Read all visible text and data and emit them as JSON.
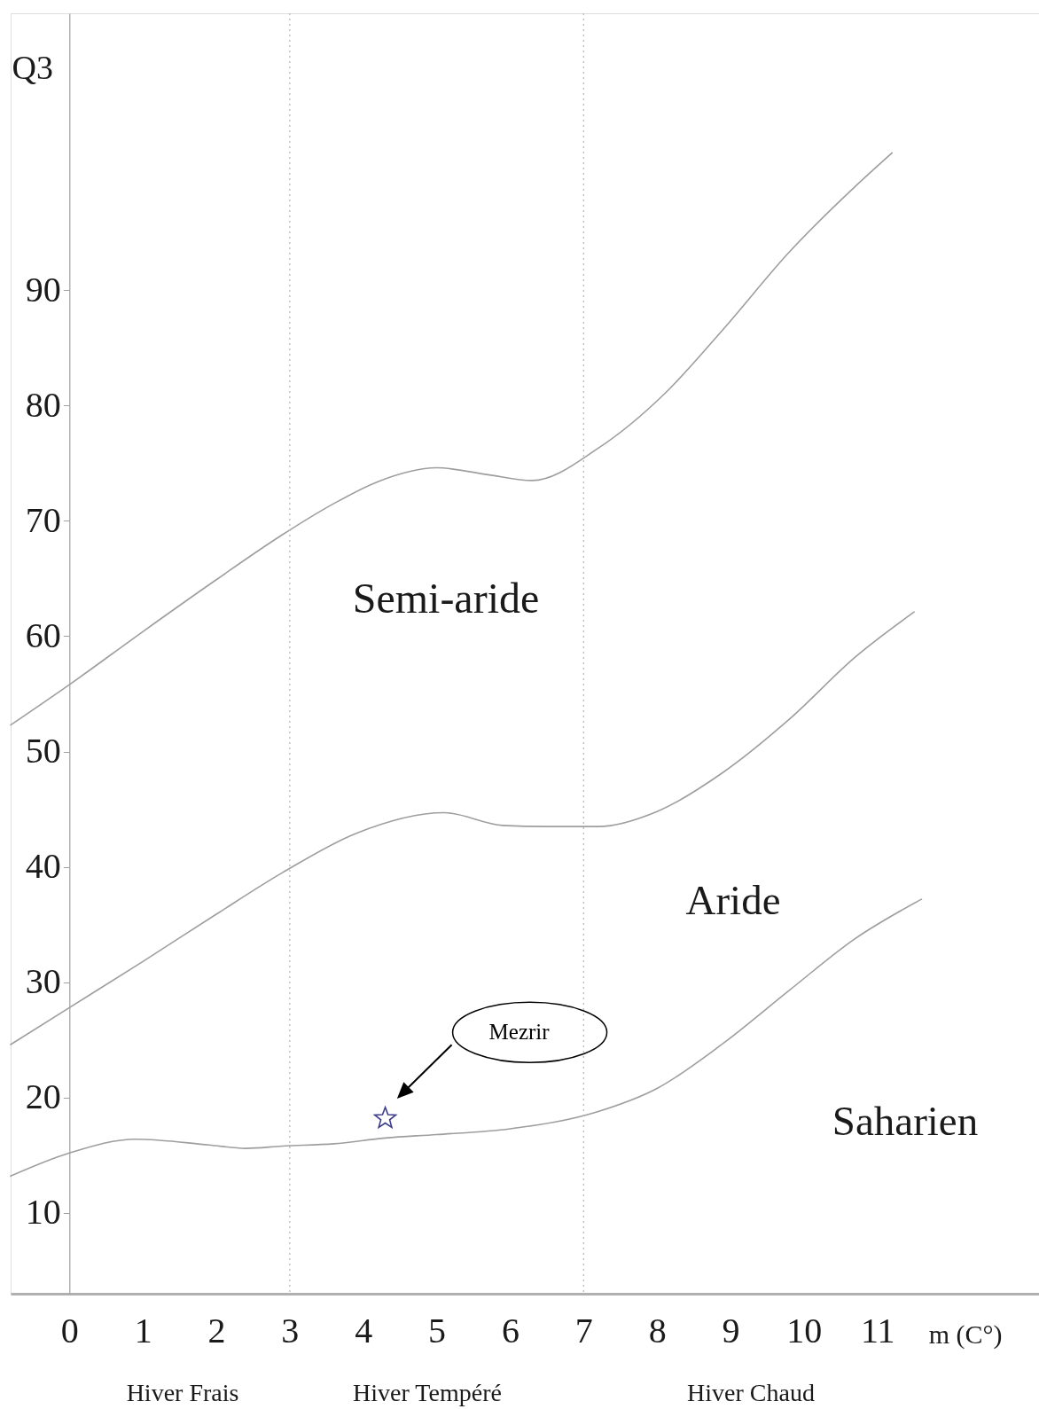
{
  "chart_data": {
    "type": "line",
    "xlabel": "m (C°)",
    "ylabel": "Q3",
    "xlim": [
      -0.8,
      13.2
    ],
    "ylim": [
      3,
      114
    ],
    "xticks": [
      0,
      1,
      2,
      3,
      4,
      5,
      6,
      7,
      8,
      9,
      10,
      11
    ],
    "yticks": [
      10,
      20,
      30,
      40,
      50,
      60,
      70,
      80,
      90
    ],
    "series": [
      {
        "color": "#9e9e9e",
        "x": [
          -0.8,
          0,
          1,
          2,
          2.9,
          3.6,
          4.2,
          5.0,
          5.7,
          6.3,
          7.2,
          8.1,
          8.9,
          9.8,
          10.7,
          11.2
        ],
        "values": [
          52.3,
          55.8,
          60.4,
          64.9,
          68.8,
          71.5,
          73.4,
          74.6,
          74.0,
          73.5,
          76.3,
          81.0,
          86.6,
          93.3,
          99.0,
          101.9
        ]
      },
      {
        "color": "#9e9e9e",
        "x": [
          -0.8,
          0,
          1,
          2,
          2.9,
          3.9,
          5.1,
          5.9,
          6.5,
          7.2,
          8.0,
          8.9,
          9.8,
          10.7,
          11.5
        ],
        "values": [
          24.6,
          27.8,
          31.8,
          35.9,
          39.5,
          42.9,
          44.7,
          43.6,
          43.5,
          43.5,
          44.8,
          48.2,
          52.8,
          58.2,
          62.1
        ]
      },
      {
        "color": "#9e9e9e",
        "x": [
          -0.8,
          0,
          0.9,
          1.9,
          2.4,
          2.9,
          3.6,
          4.3,
          5.0,
          6.0,
          7.2,
          8.0,
          8.9,
          9.8,
          10.7,
          11.6
        ],
        "values": [
          13.2,
          15.2,
          16.4,
          15.9,
          15.6,
          15.8,
          16.0,
          16.5,
          16.8,
          17.3,
          18.8,
          20.8,
          24.7,
          29.3,
          33.8,
          37.2
        ]
      },
      {
        "type": "scatter",
        "name": "Mezrir",
        "color": "#3c3c8c",
        "marker": "star",
        "x": [
          4.3
        ],
        "values": [
          18.2
        ]
      }
    ],
    "ref_lines": [
      {
        "axis": "x",
        "value": 3,
        "color": "#b4b4b4",
        "line_style": "dotted"
      },
      {
        "axis": "x",
        "value": 7,
        "color": "#b4b4b4",
        "line_style": "dotted"
      }
    ],
    "annotations": [
      "Semi-aride",
      "Aride",
      "Saharien",
      "Hiver Frais",
      "Hiver Tempéré",
      "Hiver Chaud"
    ]
  }
}
